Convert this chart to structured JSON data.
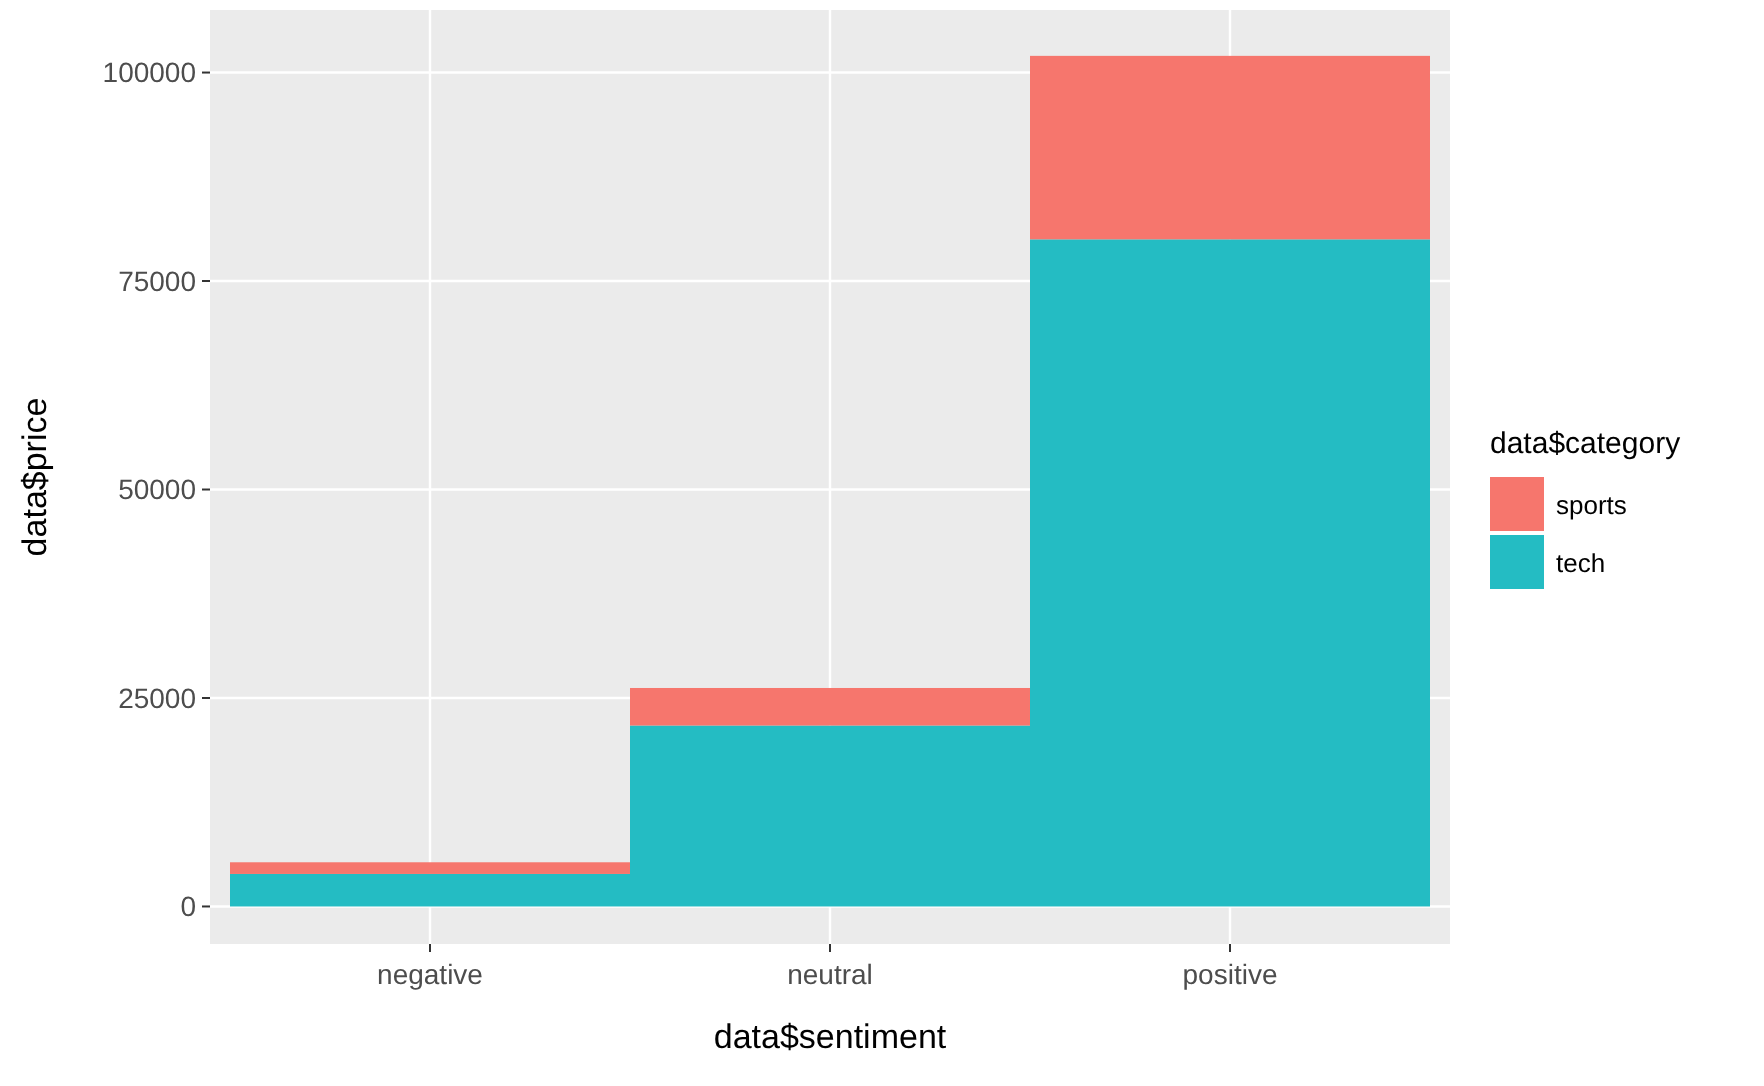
{
  "chart_data": {
    "type": "bar",
    "xlabel": "data$sentiment",
    "ylabel": "data$price",
    "legend_title": "data$category",
    "categories": [
      "negative",
      "neutral",
      "positive"
    ],
    "stacked": true,
    "series": [
      {
        "name": "tech",
        "color": "#24bcc3",
        "values": [
          3900,
          21700,
          80000
        ]
      },
      {
        "name": "sports",
        "color": "#f6766d",
        "values": [
          1400,
          4500,
          22000
        ]
      }
    ],
    "ylim": [
      -4500,
      107500
    ],
    "yticks": [
      0,
      25000,
      50000,
      75000,
      100000
    ],
    "grid": true,
    "legend": "right"
  }
}
